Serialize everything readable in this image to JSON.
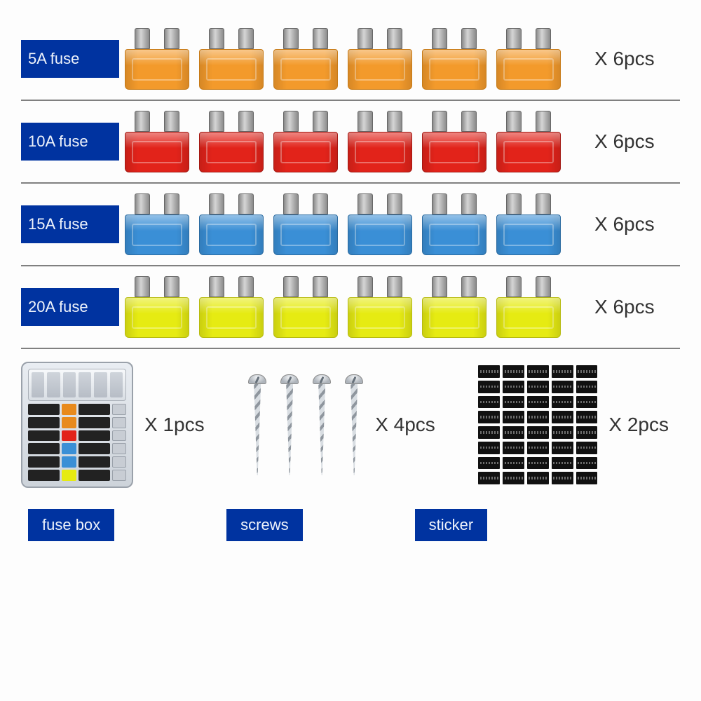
{
  "rows": [
    {
      "label": "5A fuse",
      "qty": "X 6pcs",
      "count": 6,
      "color": "#f39a2b",
      "border": "#c77a16"
    },
    {
      "label": "10A fuse",
      "qty": "X 6pcs",
      "count": 6,
      "color": "#e2231a",
      "border": "#a31812"
    },
    {
      "label": "15A fuse",
      "qty": "X 6pcs",
      "count": 6,
      "color": "#3a8fd6",
      "border": "#2a6aa0"
    },
    {
      "label": "20A fuse",
      "qty": "X 6pcs",
      "count": 6,
      "color": "#e6eb12",
      "border": "#b6ba0e"
    }
  ],
  "bottom": {
    "fusebox": {
      "label": "fuse box",
      "qty": "X 1pcs",
      "bar_colors": [
        "#e88a1c",
        "#e88a1c",
        "#e2231a",
        "#3a8fd6",
        "#3a8fd6",
        "#e6eb12"
      ]
    },
    "screws": {
      "label": "screws",
      "qty": "X 4pcs",
      "count": 4
    },
    "sticker": {
      "label": "sticker",
      "qty": "X 2pcs",
      "cells": 40
    }
  },
  "style": {
    "label_bg": "#0033a0",
    "label_fg": "#eef3fb",
    "divider": "#808080",
    "qty_color": "#333333",
    "background": "#fdfdfd",
    "qty_fontsize": 28,
    "label_fontsize": 22
  }
}
